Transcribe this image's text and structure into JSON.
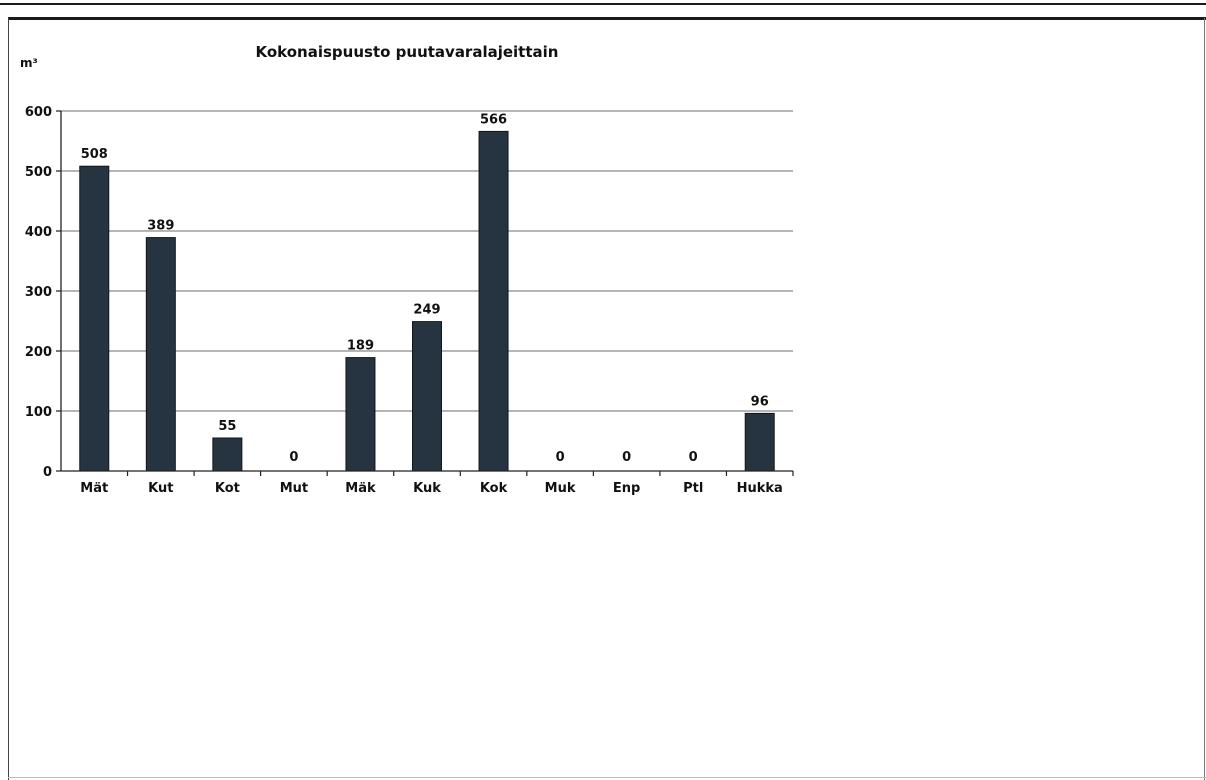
{
  "chart_data": {
    "type": "bar",
    "title": "Kokonaispuusto puutavaralajeittain",
    "ylabel": "m³",
    "xlabel": "",
    "categories": [
      "Mät",
      "Kut",
      "Kot",
      "Mut",
      "Mäk",
      "Kuk",
      "Kok",
      "Muk",
      "Enp",
      "Ptl",
      "Hukka"
    ],
    "values": [
      508,
      389,
      55,
      0,
      189,
      249,
      566,
      0,
      0,
      0,
      96
    ],
    "data_labels": [
      "508",
      "389",
      "55",
      "0",
      "189",
      "249",
      "566",
      "0",
      "0",
      "0",
      "96"
    ],
    "ylim": [
      0,
      600
    ],
    "yticks": [
      0,
      100,
      200,
      300,
      400,
      500,
      600
    ],
    "ytick_labels": [
      "0",
      "100",
      "200",
      "300",
      "400",
      "500",
      "600"
    ],
    "grid": true,
    "legend": "none",
    "bar_color": "#263340"
  }
}
